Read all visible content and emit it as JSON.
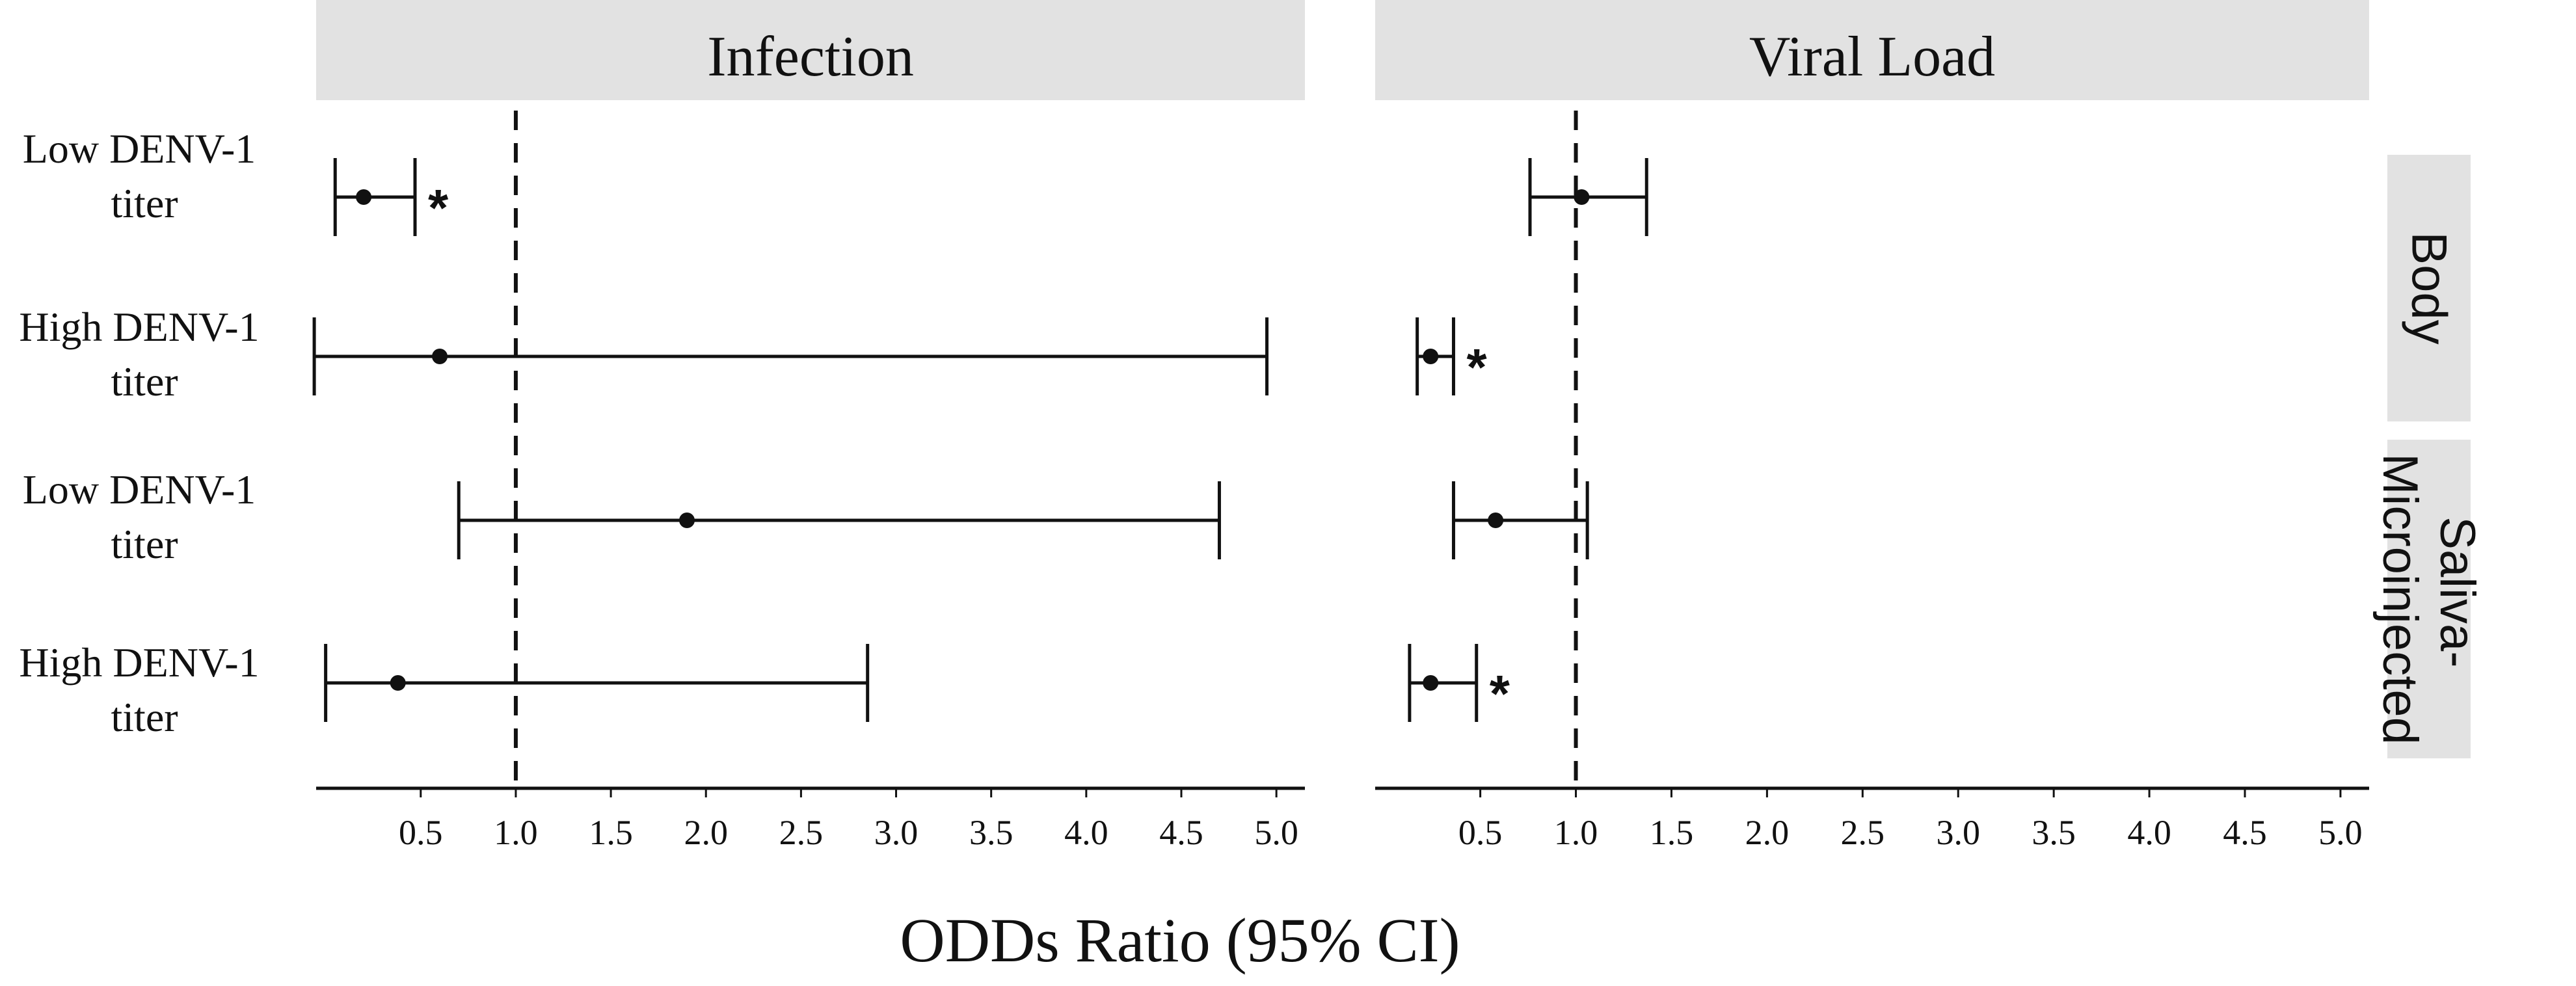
{
  "chart_data": {
    "type": "forest",
    "xlabel": "ODDs Ratio (95% CI)",
    "reference_line": 1.0,
    "xlim": [
      -0.05,
      5.15
    ],
    "xticks": [
      "0.5",
      "1.0",
      "1.5",
      "2.0",
      "2.5",
      "3.0",
      "3.5",
      "4.0",
      "4.5",
      "5.0"
    ],
    "column_panels": [
      "Infection",
      "Viral Load"
    ],
    "row_facets": [
      "Body",
      "Saliva-Microinjected"
    ],
    "row_labels": [
      {
        "line1": "Low DENV-1",
        "line2": "titer",
        "facet": "Body"
      },
      {
        "line1": "High DENV-1",
        "line2": "titer",
        "facet": "Body"
      },
      {
        "line1": "Low DENV-1",
        "line2": "titer",
        "facet": "Saliva-Microinjected"
      },
      {
        "line1": "High DENV-1",
        "line2": "titer",
        "facet": "Saliva-Microinjected"
      }
    ],
    "series": [
      {
        "name": "Infection",
        "points": [
          {
            "row": 0,
            "estimate": 0.2,
            "lower": 0.05,
            "upper": 0.47,
            "significant": true
          },
          {
            "row": 1,
            "estimate": 0.6,
            "lower": -0.06,
            "upper": 4.95,
            "significant": false
          },
          {
            "row": 2,
            "estimate": 1.9,
            "lower": 0.7,
            "upper": 4.7,
            "significant": false
          },
          {
            "row": 3,
            "estimate": 0.38,
            "lower": 0.0,
            "upper": 2.85,
            "significant": false
          }
        ]
      },
      {
        "name": "Viral Load",
        "points": [
          {
            "row": 0,
            "estimate": 1.03,
            "lower": 0.76,
            "upper": 1.37,
            "significant": false
          },
          {
            "row": 1,
            "estimate": 0.24,
            "lower": 0.17,
            "upper": 0.36,
            "significant": true
          },
          {
            "row": 2,
            "estimate": 0.58,
            "lower": 0.36,
            "upper": 1.06,
            "significant": false
          },
          {
            "row": 3,
            "estimate": 0.24,
            "lower": 0.13,
            "upper": 0.48,
            "significant": true
          }
        ]
      }
    ],
    "significance_marker": "*",
    "colors": {
      "strip_fill": "#e2e2e2",
      "ink": "#111111",
      "background": "#ffffff"
    }
  }
}
